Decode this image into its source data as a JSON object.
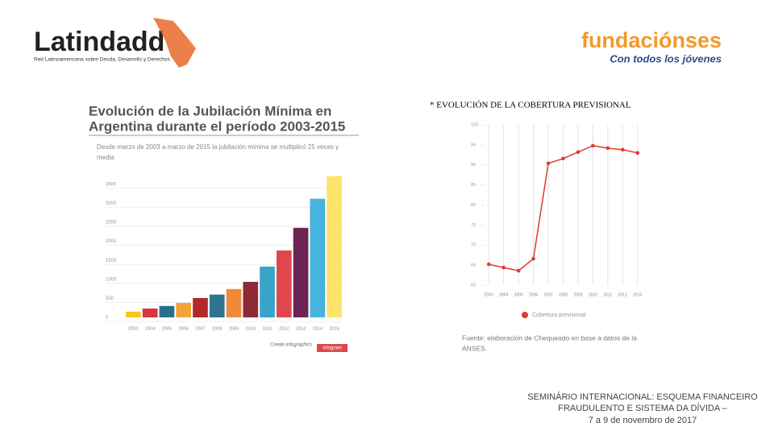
{
  "header": {
    "left_logo": "Latindadd",
    "left_tagline": "Red Latinoamericana sobre Deuda, Desarrollo y Derechos",
    "right_logo": "fundaciónses",
    "right_tagline": "Con todos los jóvenes"
  },
  "footer": {
    "line1": "SEMINÁRIO INTERNACIONAL: ESQUEMA FINANCEIRO",
    "line2": "FRAUDULENTO E SISTEMA DA DÍVIDA –",
    "line3": "7 a 9 de novembro de 2017"
  },
  "chart_data": [
    {
      "type": "bar",
      "title": "Evolución de la Jubilación Mínima en",
      "title2": "Argentina durante el período 2003-2015",
      "subtitle": "Desde marzo de 2003 a marzo de 2015 la jubilación mínima se multiplicó 25 veces y",
      "subtitle2": "media",
      "categories": [
        "2003",
        "2004",
        "2005",
        "2006",
        "2007",
        "2008",
        "2009",
        "2010",
        "2011",
        "2012",
        "2013",
        "2014",
        "2015"
      ],
      "values": [
        150,
        233,
        300,
        380,
        510,
        600,
        745,
        935,
        1335,
        1760,
        2355,
        3120,
        3715
      ],
      "colors": [
        "#f5c518",
        "#d9363e",
        "#2a6f8a",
        "#f3a33a",
        "#b22a2a",
        "#2e7591",
        "#f08a3a",
        "#8e2a34",
        "#3aa3c9",
        "#e0474c",
        "#6b2454",
        "#46b4dc",
        "#fde36a"
      ],
      "ylim": [
        0,
        3750
      ],
      "yticks": [
        0,
        500,
        1000,
        1500,
        2000,
        2500,
        3000,
        3500
      ],
      "grid": "y",
      "credit": "Create infographics",
      "credit_badge": "infogram"
    },
    {
      "type": "line",
      "title": "* EVOLUCIÓN DE LA COBERTURA PREVISIONAL",
      "categories": [
        "2003",
        "2004",
        "2005",
        "2006",
        "2007",
        "2008",
        "2009",
        "2010",
        "2011",
        "2012",
        "2013"
      ],
      "series": [
        {
          "name": "Cobertura previsional",
          "color": "#e03a2e",
          "values": [
            65.2,
            64.4,
            63.6,
            66.6,
            90.4,
            91.6,
            93.2,
            94.8,
            94.2,
            93.8,
            93.0
          ]
        }
      ],
      "ylim": [
        60,
        100
      ],
      "yticks": [
        60,
        65,
        70,
        75,
        80,
        85,
        90,
        95,
        100
      ],
      "grid": "x",
      "source": "Fuente: elaboración de Chequeado en base a datos de la",
      "source2": "ANSES."
    }
  ]
}
